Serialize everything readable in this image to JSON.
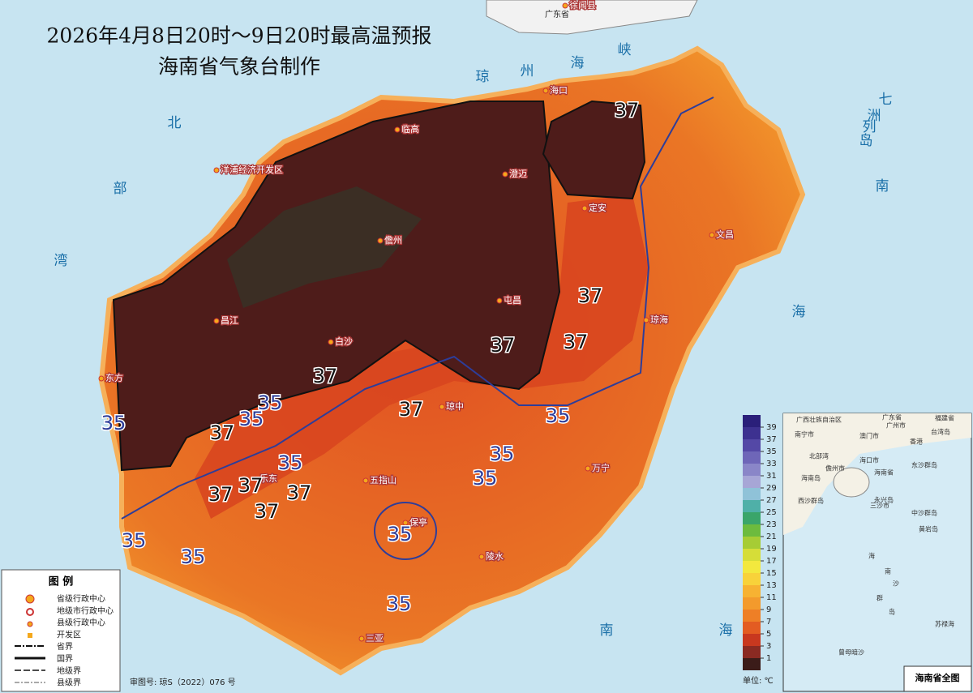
{
  "title": {
    "line1": "2026年4月8日20时～9日20时最高温预报",
    "line2": "海南省气象台制作"
  },
  "seas": [
    "琼",
    "州",
    "海",
    "峡",
    "北",
    "部",
    "湾",
    "南",
    "海",
    "七",
    "洲",
    "列",
    "岛",
    "南",
    "海"
  ],
  "places": [
    "广东省",
    "徐闻县",
    "海口",
    "临高",
    "澄迈",
    "洋浦经济开发区",
    "儋州",
    "定安",
    "文昌",
    "屯昌",
    "琼海",
    "昌江",
    "白沙",
    "东方",
    "琼中",
    "万宁",
    "五指山",
    "乐东",
    "保亭",
    "陵水",
    "三亚"
  ],
  "contours": [
    {
      "value": 37,
      "color": "#111111"
    },
    {
      "value": 37,
      "color": "#111111"
    },
    {
      "value": 37,
      "color": "#111111"
    },
    {
      "value": 37,
      "color": "#111111"
    },
    {
      "value": 37,
      "color": "#111111"
    },
    {
      "value": 37,
      "color": "#111111"
    },
    {
      "value": 37,
      "color": "#111111"
    },
    {
      "value": 37,
      "color": "#111111"
    },
    {
      "value": 37,
      "color": "#111111"
    },
    {
      "value": 37,
      "color": "#111111"
    },
    {
      "value": 37,
      "color": "#111111"
    },
    {
      "value": 35,
      "color": "#2d3d9a"
    },
    {
      "value": 35,
      "color": "#2d3d9a"
    },
    {
      "value": 35,
      "color": "#2d3d9a"
    },
    {
      "value": 35,
      "color": "#2d3d9a"
    },
    {
      "value": 35,
      "color": "#2d3d9a"
    },
    {
      "value": 35,
      "color": "#2d3d9a"
    },
    {
      "value": 35,
      "color": "#2d3d9a"
    },
    {
      "value": 35,
      "color": "#2d3d9a"
    },
    {
      "value": 35,
      "color": "#2d3d9a"
    },
    {
      "value": 35,
      "color": "#2d3d9a"
    },
    {
      "value": 35,
      "color": "#2d3d9a"
    }
  ],
  "colorbar": {
    "ticks": [
      1,
      3,
      5,
      7,
      9,
      11,
      13,
      15,
      17,
      19,
      21,
      23,
      25,
      27,
      29,
      31,
      33,
      35,
      37,
      39
    ],
    "colors": [
      "#2a1f7a",
      "#3d3190",
      "#5448a6",
      "#6e66b8",
      "#8a86c8",
      "#a7a6d6",
      "#8fc2d8",
      "#4fb0a8",
      "#3aa56a",
      "#6cbb3e",
      "#a6cc35",
      "#d6dd38",
      "#f3e83e",
      "#f8d23a",
      "#f7b232",
      "#f39a2c",
      "#ee7f26",
      "#e35c22",
      "#c8381f",
      "#8a2a22",
      "#3b1c19"
    ],
    "unit": "单位: ℃"
  },
  "legend": {
    "title": "图    例",
    "items": [
      "省级行政中心",
      "地级市行政中心",
      "县级行政中心",
      "开发区",
      "省界",
      "国界",
      "地级界",
      "县级界"
    ]
  },
  "review_no": "审图号: 琼S（2022）076 号",
  "inset": {
    "labels": [
      "广西壮族自治区",
      "广东省",
      "福建省",
      "南宁市",
      "广州市",
      "澳门市",
      "香港",
      "台湾岛",
      "北部湾",
      "海口市",
      "儋州市",
      "海南省",
      "东沙群岛",
      "海南岛",
      "西沙群岛",
      "永兴岛",
      "三沙市",
      "中沙群岛",
      "黄岩岛",
      "海",
      "南",
      "沙",
      "群",
      "岛",
      "曾母暗沙",
      "苏禄海"
    ],
    "title": "海南省全图"
  }
}
